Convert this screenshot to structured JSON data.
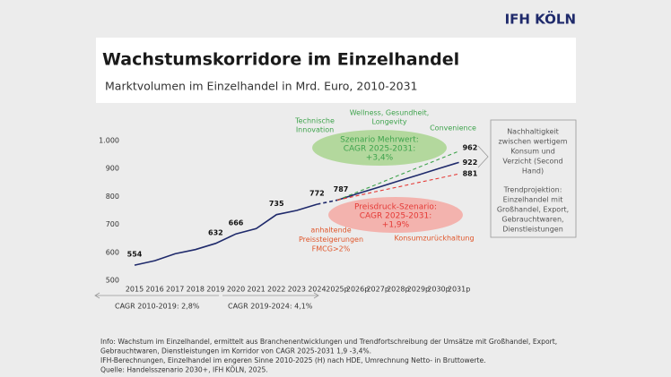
{
  "logo": "IFH KÖLN",
  "chart_data": {
    "type": "line",
    "title": "Wachstumskorridore im Einzelhandel",
    "subtitle": "Marktvolumen im Einzelhandel in Mrd. Euro, 2010-2031",
    "categories": [
      "2015",
      "2016",
      "2017",
      "2018",
      "2019",
      "2020",
      "2021",
      "2022",
      "2023",
      "2024",
      "2025p",
      "2026p",
      "2027p",
      "2028p",
      "2029p",
      "2030p",
      "2031p"
    ],
    "series": [
      {
        "name": "Trendprojektion",
        "color": "#1f2a6b",
        "values": [
          554,
          570,
          595,
          610,
          632,
          666,
          685,
          735,
          750,
          772,
          787,
          810,
          832,
          855,
          877,
          900,
          922
        ],
        "value_labels": [
          "554",
          null,
          null,
          null,
          "632",
          "666",
          null,
          "735",
          null,
          "772",
          "787",
          null,
          null,
          null,
          null,
          null,
          "922"
        ]
      },
      {
        "name": "Szenario Mehrwert",
        "color": "#3fa34d",
        "values": [
          null,
          null,
          null,
          null,
          null,
          null,
          null,
          null,
          null,
          null,
          787,
          816,
          845,
          875,
          904,
          933,
          962
        ],
        "value_labels": [
          null,
          null,
          null,
          null,
          null,
          null,
          null,
          null,
          null,
          null,
          null,
          null,
          null,
          null,
          null,
          null,
          "962"
        ]
      },
      {
        "name": "Preisdruck-Szenario",
        "color": "#e53935",
        "values": [
          null,
          null,
          null,
          null,
          null,
          null,
          null,
          null,
          null,
          null,
          787,
          803,
          819,
          834,
          850,
          865,
          881
        ],
        "value_labels": [
          null,
          null,
          null,
          null,
          null,
          null,
          null,
          null,
          null,
          null,
          null,
          null,
          null,
          null,
          null,
          null,
          "881"
        ]
      }
    ],
    "ylim": [
      500,
      1000
    ],
    "yticks": [
      500,
      600,
      700,
      800,
      900,
      {
        "value": 1000,
        "label": "1.000"
      }
    ],
    "annotations": {
      "tech": [
        "Technische",
        "Innovation"
      ],
      "wellness": [
        "Wellness, Gesundheit,",
        "Longevity"
      ],
      "convenience": [
        "Convenience"
      ],
      "mehrwert": [
        "Szenario Mehrwert:",
        "CAGR 2025-2031:",
        "+3,4%"
      ],
      "preisdruck": [
        "Preisdruck-Szenario:",
        "CAGR 2025-2031:",
        "+1,9%"
      ],
      "preissteigerung": [
        "anhaltende",
        "Preissteigerungen",
        "FMCG>2%"
      ],
      "konsum": [
        "Konsumzurückhaltung"
      ],
      "box1": [
        "Nachhaltigkeit",
        "zwischen wertigem",
        "Konsum und",
        "Verzicht (Second",
        "Hand)"
      ],
      "box2": [
        "Trendprojektion:",
        "Einzelhandel mit",
        "Großhandel, Export,",
        "Gebrauchtwaren,",
        "Dienstleistungen"
      ],
      "cagr1": "CAGR 2010-2019: 2,8%",
      "cagr2": "CAGR 2019-2024: 4,1%"
    }
  },
  "footnote": [
    "Info: Wachstum im Einzelhandel, ermittelt aus Branchenentwicklungen und Trendfortschreibung der Umsätze mit Großhandel, Export,",
    "Gebrauchtwaren, Dienstleistungen im Korridor von CAGR 2025-2031 1,9 -3,4%.",
    "IFH-Berechnungen, Einzelhandel im engeren Sinne 2010-2025 (H) nach HDE, Umrechnung Netto- in Bruttowerte.",
    "Quelle: Handelsszenario 2030+, IFH KÖLN, 2025."
  ]
}
